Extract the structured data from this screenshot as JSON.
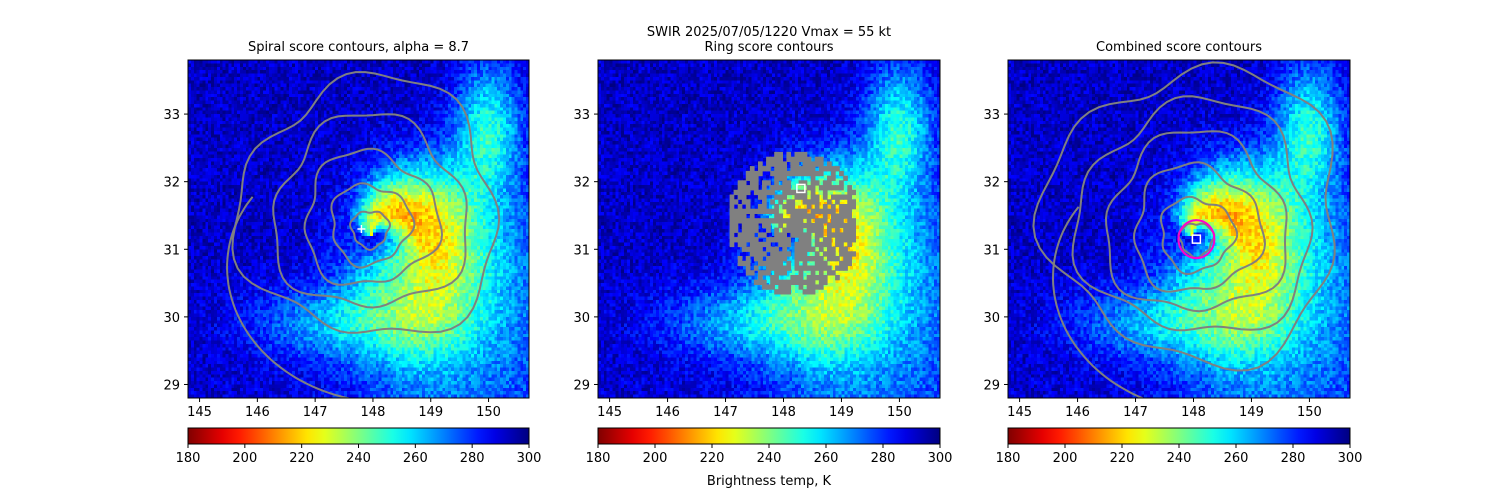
{
  "suptitle": "SWIR  2025/07/05/1220    Vmax = 55 kt",
  "colorbar_label": "Brightness temp, K",
  "chart_data": [
    {
      "type": "heatmap",
      "title": "Spiral score contours, alpha =  8.7",
      "xlim": [
        144.8,
        150.7
      ],
      "ylim": [
        28.8,
        33.8
      ],
      "xticks": [
        145,
        146,
        147,
        148,
        149,
        150
      ],
      "yticks": [
        29,
        30,
        31,
        32,
        33
      ],
      "colorbar_ticks": [
        180,
        200,
        220,
        240,
        260,
        280,
        300
      ],
      "colormap": "jet_r",
      "color_range": [
        180,
        300
      ],
      "contour_color": "#808080",
      "marker": {
        "type": "plus",
        "x": 147.8,
        "y": 31.3,
        "color": "#ffffff"
      }
    },
    {
      "type": "heatmap",
      "title": "Ring score contours",
      "xlim": [
        144.8,
        150.7
      ],
      "ylim": [
        28.8,
        33.8
      ],
      "xticks": [
        145,
        146,
        147,
        148,
        149,
        150
      ],
      "yticks": [
        29,
        30,
        31,
        32,
        33
      ],
      "colorbar_ticks": [
        180,
        200,
        220,
        240,
        260,
        280,
        300
      ],
      "colormap": "jet_r",
      "color_range": [
        180,
        300
      ],
      "contour_color": "#808080",
      "marker": {
        "type": "square",
        "x": 148.3,
        "y": 31.9,
        "color": "#ffffff"
      }
    },
    {
      "type": "heatmap",
      "title": "Combined score contours",
      "xlim": [
        144.8,
        150.7
      ],
      "ylim": [
        28.8,
        33.8
      ],
      "xticks": [
        145,
        146,
        147,
        148,
        149,
        150
      ],
      "yticks": [
        29,
        30,
        31,
        32,
        33
      ],
      "colorbar_ticks": [
        180,
        200,
        220,
        240,
        260,
        280,
        300
      ],
      "colormap": "jet_r",
      "color_range": [
        180,
        300
      ],
      "contour_color": "#808080",
      "marker": {
        "type": "square",
        "x": 148.05,
        "y": 31.15,
        "color": "#ffffff"
      },
      "ring": {
        "x": 148.05,
        "y": 31.15,
        "color": "#ff00cc"
      }
    }
  ]
}
